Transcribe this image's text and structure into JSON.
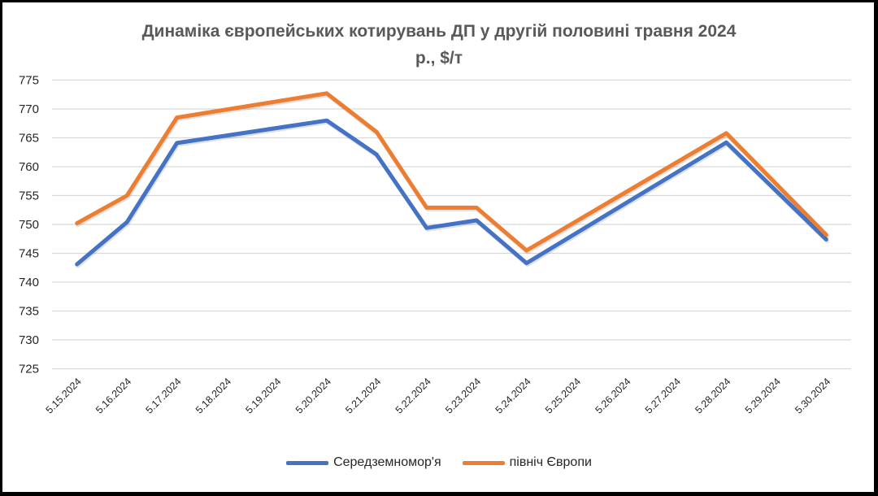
{
  "chart_data": {
    "type": "line",
    "title": "Динаміка європейських котирувань ДП у другій половині травня 2024",
    "subtitle": "р., $/т",
    "xlabel": "",
    "ylabel": "",
    "ylim": [
      725,
      775
    ],
    "yticks": [
      775,
      770,
      765,
      760,
      755,
      750,
      745,
      740,
      735,
      730,
      725
    ],
    "grid": true,
    "legend_position": "bottom",
    "categories": [
      "5.15.2024",
      "5.16.2024",
      "5.17.2024",
      "5.18.2024",
      "5.19.2024",
      "5.20.2024",
      "5.21.2024",
      "5.22.2024",
      "5.23.2024",
      "5.24.2024",
      "5.25.2024",
      "5.26.2024",
      "5.27.2024",
      "5.28.2024",
      "5.29.2024",
      "5.30.2024"
    ],
    "series": [
      {
        "name": "Середземномор'я",
        "color": "#4472C4",
        "values": [
          743.1,
          750.4,
          764.1,
          null,
          null,
          768.0,
          762.1,
          749.4,
          750.7,
          743.3,
          null,
          null,
          null,
          764.2,
          null,
          747.4
        ]
      },
      {
        "name": "північ Європи",
        "color": "#ED7D31",
        "values": [
          750.2,
          755.0,
          768.5,
          null,
          null,
          772.7,
          766.0,
          752.9,
          752.9,
          745.5,
          null,
          null,
          null,
          765.8,
          null,
          748.2
        ]
      }
    ]
  }
}
